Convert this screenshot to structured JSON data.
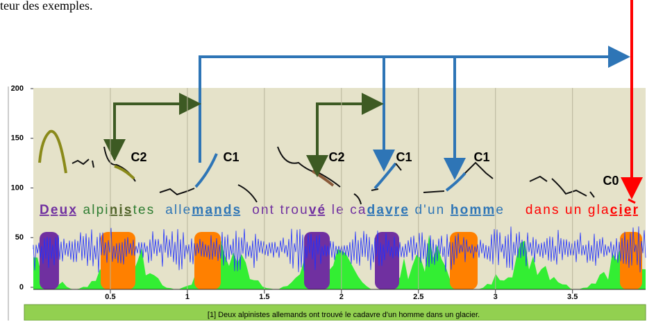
{
  "caption": "teur des exemples.",
  "axes": {
    "ylim": [
      0,
      200
    ],
    "yticks": [
      0,
      50,
      100,
      150,
      200
    ],
    "xlim": [
      0,
      3.97
    ],
    "xticks": [
      0.5,
      1,
      1.5,
      2,
      2.5,
      3,
      3.5
    ]
  },
  "contour_labels": [
    "C2",
    "C1",
    "C2",
    "C1",
    "C1",
    "C0"
  ],
  "sentence": [
    {
      "text": "Deux",
      "color": "#7030a0",
      "bold": true
    },
    {
      "text": " alpi",
      "color": "#2e7d32",
      "bold": false
    },
    {
      "text": "nis",
      "color": "#4f6228",
      "bold": true
    },
    {
      "text": "tes  ",
      "color": "#2e7d32",
      "bold": false
    },
    {
      "text": "alle",
      "color": "#2e75b6",
      "bold": false
    },
    {
      "text": "mands",
      "color": "#2e75b6",
      "bold": true
    },
    {
      "text": "  ont trou",
      "color": "#7030a0",
      "bold": false
    },
    {
      "text": "vé",
      "color": "#7030a0",
      "bold": true
    },
    {
      "text": " le ca",
      "color": "#7030a0",
      "bold": false
    },
    {
      "text": "davre",
      "color": "#2e75b6",
      "bold": true
    },
    {
      "text": " d'un ",
      "color": "#2e75b6",
      "bold": false
    },
    {
      "text": "homm",
      "color": "#2e75b6",
      "bold": true
    },
    {
      "text": "e    ",
      "color": "#2e75b6",
      "bold": false
    },
    {
      "text": "dans un gla",
      "color": "#ff0000",
      "bold": false
    },
    {
      "text": "cier",
      "color": "#ff0000",
      "bold": true
    }
  ],
  "transcript": "[1] Deux alpinistes allemands ont trouvé le cadavre d'un homme dans un glacier."
}
